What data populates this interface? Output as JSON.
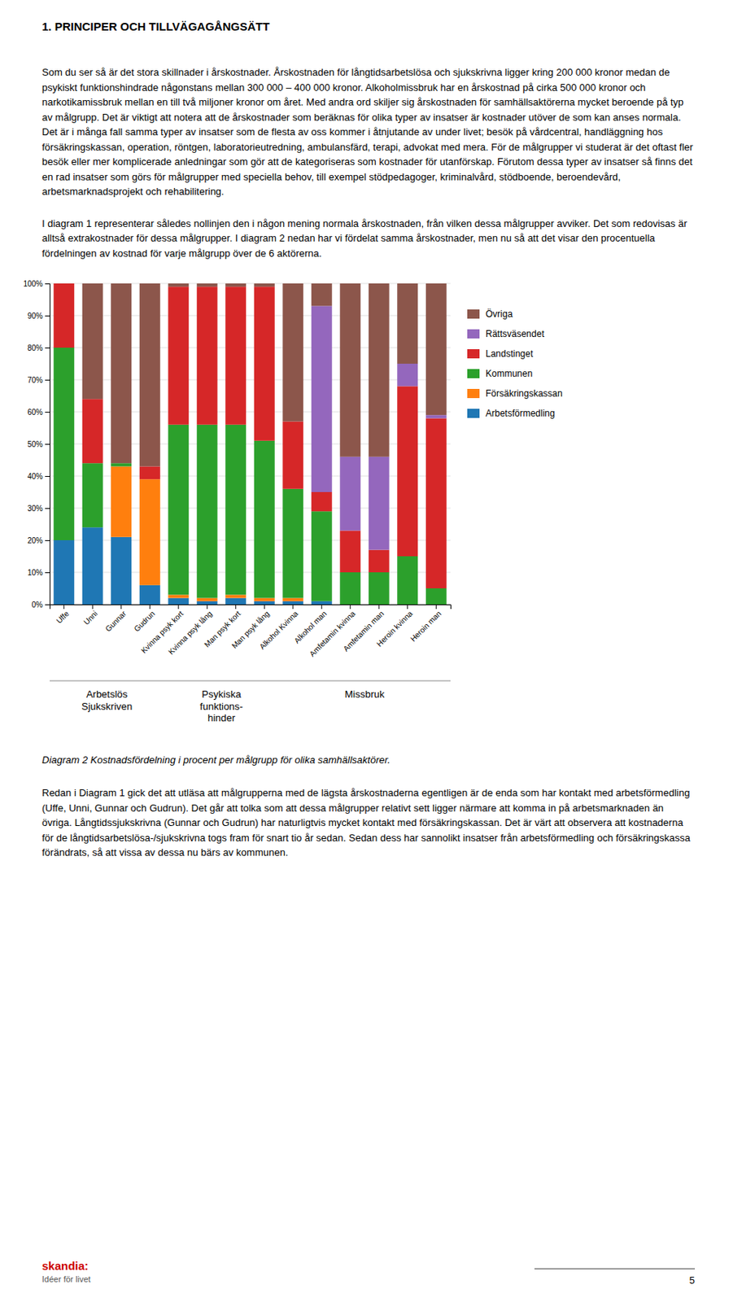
{
  "heading": "1. PRINCIPER OCH TILLVÄGAGÅNGSÄTT",
  "paragraphs": [
    "Som du ser så är det stora skillnader i årskostnader. Årskostnaden för långtidsarbetslösa och sjukskrivna ligger kring 200 000 kronor medan de psykiskt funktionshindrade någonstans mellan 300 000 – 400 000 kronor. Alkoholmissbruk har en årskostnad på cirka 500 000 kronor och narkotikamissbruk mellan en till två miljoner kronor om året. Med andra ord skiljer sig årskostnaden för samhällsaktörerna mycket beroende på typ av målgrupp.  Det är viktigt att notera att de årskostnader som beräknas för olika typer av insatser är kostnader utöver de som kan anses normala. Det är i många fall samma typer av insatser som de flesta av oss kommer i åtnjutande av under livet; besök på vårdcentral, handläggning hos försäkringskassan, operation, röntgen, laboratorieutredning, ambulansfärd, terapi, advokat med mera. För de målgrupper vi studerat är det oftast fler besök eller mer komplicerade anledningar som gör att de kategoriseras som kostnader för utanförskap. Förutom dessa typer av insatser så finns det en rad insatser som görs för målgrupper med speciella behov, till exempel stödpedagoger, kriminalvård, stödboende, beroendevård, arbetsmarknadsprojekt och rehabilitering.",
    "I diagram 1 representerar således nollinjen den i någon mening normala årskostnaden, från vilken dessa målgrupper avviker. Det som redovisas är alltså extrakostnader för dessa målgrupper. I diagram 2 nedan har vi fördelat samma årskostnader, men nu så att det visar den procentuella fördelningen av kostnad för varje målgrupp över de 6 aktörerna."
  ],
  "chart_data": {
    "type": "bar",
    "stacked": true,
    "title": "Diagram 2 Kostnadsfördelning i procent per målgrupp för olika samhällsaktörer.",
    "categories": [
      "Uffe",
      "Unni",
      "Gunnar",
      "Gudrun",
      "Kvinna psyk kort",
      "Kvinna psyk lång",
      "Man psyk kort",
      "Man psyk lång",
      "Alkohol Kvinna",
      "Alkohol man",
      "Amfetamin kvinna",
      "Amfetamin man",
      "Heroin kvinna",
      "Heroin man"
    ],
    "series": [
      {
        "name": "Arbetsförmedling",
        "values": [
          20,
          24,
          21,
          6,
          2,
          1,
          2,
          1,
          1,
          1,
          0,
          0,
          0,
          0
        ]
      },
      {
        "name": "Försäkringskassan",
        "values": [
          0,
          0,
          22,
          33,
          1,
          1,
          1,
          1,
          1,
          0,
          0,
          0,
          0,
          0
        ]
      },
      {
        "name": "Kommunen",
        "values": [
          60,
          20,
          1,
          0,
          53,
          54,
          53,
          49,
          34,
          28,
          10,
          10,
          15,
          5
        ]
      },
      {
        "name": "Landstinget",
        "values": [
          20,
          20,
          0,
          4,
          43,
          43,
          43,
          48,
          21,
          6,
          13,
          7,
          53,
          53
        ]
      },
      {
        "name": "Rättsväsendet",
        "values": [
          0,
          0,
          0,
          0,
          0,
          0,
          0,
          0,
          0,
          58,
          23,
          29,
          7,
          1
        ]
      },
      {
        "name": "Övriga",
        "values": [
          0,
          36,
          56,
          57,
          1,
          1,
          1,
          1,
          43,
          7,
          54,
          54,
          25,
          41
        ]
      }
    ],
    "ylim": [
      0,
      100
    ],
    "yticks": [
      {
        "value": 0,
        "label": "0%"
      },
      {
        "value": 10,
        "label": "10%"
      },
      {
        "value": 20,
        "label": "20%"
      },
      {
        "value": 30,
        "label": "30%"
      },
      {
        "value": 40,
        "label": "40%"
      },
      {
        "value": 50,
        "label": "50%"
      },
      {
        "value": 60,
        "label": "60%"
      },
      {
        "value": 70,
        "label": "70%"
      },
      {
        "value": 80,
        "label": "80%"
      },
      {
        "value": 90,
        "label": "90%"
      },
      {
        "value": 100,
        "label": "100%"
      }
    ],
    "grid": true,
    "legend": "right",
    "annotations": [
      "Arbetslös\nSjukskriven",
      "Psykiska\nfunktions-\nhinder",
      "Missbruk"
    ]
  },
  "bottom_paragraph": "Redan i Diagram 1 gick det att utläsa att målgrupperna med de lägsta årskostnaderna egentligen är de enda som har kontakt med arbetsförmedling (Uffe, Unni, Gunnar och Gudrun). Det går att tolka som att dessa målgrupper relativt sett ligger närmare att komma in på arbetsmarknaden än övriga. Långtidssjukskrivna (Gunnar och Gudrun) har naturligtvis mycket kontakt med försäkringskassan. Det är värt att observera att kostnaderna för de långtidsarbetslösa-/sjukskrivna togs fram för snart tio år sedan. Sedan dess har sannolikt insatser från arbetsförmedling och försäkringskassa förändrats, så att vissa av dessa nu bärs av kommunen.",
  "footer": [
    {
      "text": "skandia:",
      "color": "#cc0000"
    },
    {
      "text": "Idéer för livet"
    }
  ],
  "page_number": "5"
}
